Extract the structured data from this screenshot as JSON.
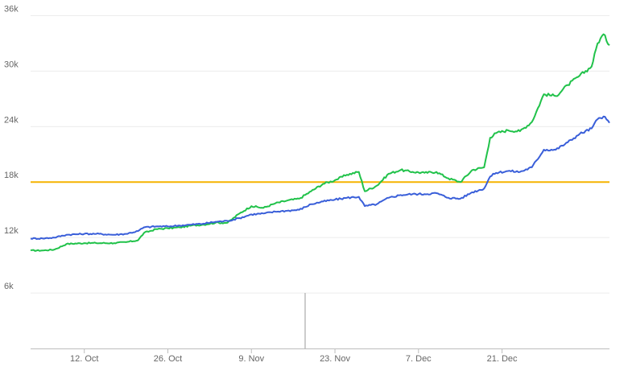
{
  "colors": {
    "series_green": "#21c24a",
    "series_blue": "#3a5fd9",
    "threshold": "#f5b301",
    "grid": "#ececec",
    "axis": "#bdbdbd",
    "volume_bar": "#aaaaaa",
    "background": "#ffffff"
  },
  "chart_data": {
    "type": "line",
    "title": "",
    "xlabel": "",
    "ylabel": "",
    "grid": true,
    "legend": "none",
    "x_range": [
      "2020-10-03",
      "2021-01-08"
    ],
    "ylim": [
      0,
      37000
    ],
    "y_ticks": [
      6000,
      12000,
      18000,
      24000,
      30000,
      36000
    ],
    "y_tick_labels": [
      "6k",
      "12k",
      "18k",
      "24k",
      "30k",
      "36k"
    ],
    "x_ticks": [
      "2020-10-12",
      "2020-10-26",
      "2020-11-09",
      "2020-11-23",
      "2020-12-07",
      "2020-12-21"
    ],
    "x_tick_labels": [
      "12. Oct",
      "26. Oct",
      "9. Nov",
      "23. Nov",
      "7. Dec",
      "21. Dec"
    ],
    "reference_line": {
      "y": 18000
    },
    "volume_marker": {
      "x": "2020-11-18",
      "value": 6000
    },
    "series": [
      {
        "color_key": "series_green",
        "points": [
          [
            "2020-10-03",
            10600
          ],
          [
            "2020-10-05",
            10600
          ],
          [
            "2020-10-07",
            10700
          ],
          [
            "2020-10-09",
            11300
          ],
          [
            "2020-10-12",
            11400
          ],
          [
            "2020-10-14",
            11400
          ],
          [
            "2020-10-17",
            11400
          ],
          [
            "2020-10-19",
            11500
          ],
          [
            "2020-10-21",
            11700
          ],
          [
            "2020-10-22",
            12500
          ],
          [
            "2020-10-24",
            12900
          ],
          [
            "2020-10-26",
            13000
          ],
          [
            "2020-10-28",
            13100
          ],
          [
            "2020-10-30",
            13300
          ],
          [
            "2020-11-01",
            13400
          ],
          [
            "2020-11-03",
            13600
          ],
          [
            "2020-11-05",
            13600
          ],
          [
            "2020-11-07",
            14600
          ],
          [
            "2020-11-09",
            15400
          ],
          [
            "2020-11-11",
            15200
          ],
          [
            "2020-11-13",
            15700
          ],
          [
            "2020-11-15",
            16000
          ],
          [
            "2020-11-17",
            16200
          ],
          [
            "2020-11-19",
            17000
          ],
          [
            "2020-11-21",
            17800
          ],
          [
            "2020-11-23",
            18200
          ],
          [
            "2020-11-25",
            18800
          ],
          [
            "2020-11-27",
            19100
          ],
          [
            "2020-11-28",
            17000
          ],
          [
            "2020-11-30",
            17600
          ],
          [
            "2020-12-02",
            18900
          ],
          [
            "2020-12-04",
            19300
          ],
          [
            "2020-12-06",
            19100
          ],
          [
            "2020-12-08",
            19000
          ],
          [
            "2020-12-10",
            19100
          ],
          [
            "2020-12-12",
            18400
          ],
          [
            "2020-12-14",
            18000
          ],
          [
            "2020-12-16",
            19300
          ],
          [
            "2020-12-18",
            19600
          ],
          [
            "2020-12-19",
            22800
          ],
          [
            "2020-12-20",
            23300
          ],
          [
            "2020-12-22",
            23600
          ],
          [
            "2020-12-24",
            23500
          ],
          [
            "2020-12-26",
            24500
          ],
          [
            "2020-12-28",
            27500
          ],
          [
            "2020-12-30",
            27300
          ],
          [
            "2021-01-01",
            28500
          ],
          [
            "2021-01-03",
            29500
          ],
          [
            "2021-01-05",
            30500
          ],
          [
            "2021-01-06",
            33000
          ],
          [
            "2021-01-07",
            34000
          ],
          [
            "2021-01-08",
            32800
          ]
        ]
      },
      {
        "color_key": "series_blue",
        "points": [
          [
            "2020-10-03",
            11900
          ],
          [
            "2020-10-05",
            11900
          ],
          [
            "2020-10-07",
            12000
          ],
          [
            "2020-10-09",
            12300
          ],
          [
            "2020-10-12",
            12400
          ],
          [
            "2020-10-14",
            12400
          ],
          [
            "2020-10-17",
            12300
          ],
          [
            "2020-10-19",
            12400
          ],
          [
            "2020-10-21",
            12700
          ],
          [
            "2020-10-22",
            13100
          ],
          [
            "2020-10-24",
            13200
          ],
          [
            "2020-10-26",
            13200
          ],
          [
            "2020-10-28",
            13300
          ],
          [
            "2020-10-30",
            13400
          ],
          [
            "2020-11-01",
            13500
          ],
          [
            "2020-11-03",
            13700
          ],
          [
            "2020-11-05",
            13800
          ],
          [
            "2020-11-07",
            14100
          ],
          [
            "2020-11-09",
            14500
          ],
          [
            "2020-11-11",
            14600
          ],
          [
            "2020-11-13",
            14800
          ],
          [
            "2020-11-15",
            14900
          ],
          [
            "2020-11-17",
            15000
          ],
          [
            "2020-11-19",
            15600
          ],
          [
            "2020-11-21",
            15900
          ],
          [
            "2020-11-23",
            16100
          ],
          [
            "2020-11-25",
            16300
          ],
          [
            "2020-11-27",
            16400
          ],
          [
            "2020-11-28",
            15400
          ],
          [
            "2020-11-30",
            15600
          ],
          [
            "2020-12-02",
            16300
          ],
          [
            "2020-12-04",
            16600
          ],
          [
            "2020-12-06",
            16700
          ],
          [
            "2020-12-08",
            16700
          ],
          [
            "2020-12-10",
            16800
          ],
          [
            "2020-12-12",
            16300
          ],
          [
            "2020-12-14",
            16200
          ],
          [
            "2020-12-16",
            16900
          ],
          [
            "2020-12-18",
            17300
          ],
          [
            "2020-12-19",
            18600
          ],
          [
            "2020-12-20",
            19000
          ],
          [
            "2020-12-22",
            19200
          ],
          [
            "2020-12-24",
            19100
          ],
          [
            "2020-12-26",
            19600
          ],
          [
            "2020-12-28",
            21500
          ],
          [
            "2020-12-30",
            21500
          ],
          [
            "2021-01-01",
            22300
          ],
          [
            "2021-01-03",
            23200
          ],
          [
            "2021-01-05",
            23800
          ],
          [
            "2021-01-06",
            24800
          ],
          [
            "2021-01-07",
            25100
          ],
          [
            "2021-01-08",
            24400
          ]
        ]
      }
    ]
  }
}
